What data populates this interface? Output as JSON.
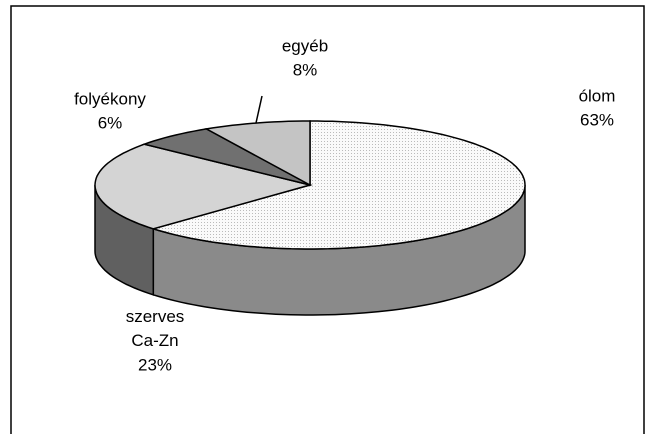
{
  "chart_data": {
    "type": "pie",
    "categories": [
      "ólom",
      "szerves Ca-Zn",
      "folyékony",
      "egyéb"
    ],
    "values": [
      63,
      23,
      6,
      8
    ],
    "value_labels": [
      "63%",
      "23%",
      "6%",
      "8%"
    ],
    "colors": [
      "#efefef",
      "#d4d4d4",
      "#707070",
      "#c4c4c4"
    ],
    "side_colors": [
      "#8a8a8a",
      "#606060",
      "#404040",
      "#707070"
    ]
  }
}
